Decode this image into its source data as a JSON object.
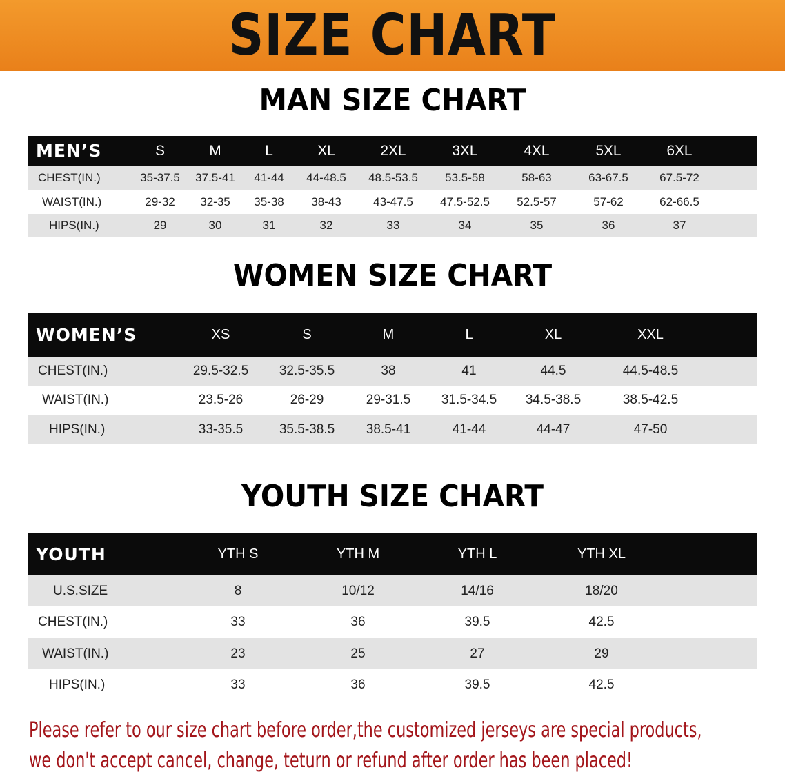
{
  "banner": {
    "title": "SIZE CHART",
    "color": "#ee8a22"
  },
  "men": {
    "title": "MAN SIZE CHART",
    "header_label": "MEN’S",
    "sizes": [
      "S",
      "M",
      "L",
      "XL",
      "2XL",
      "3XL",
      "4XL",
      "5XL",
      "6XL"
    ],
    "rows": [
      {
        "label": "CHEST(IN.)",
        "values": [
          "35-37.5",
          "37.5-41",
          "41-44",
          "44-48.5",
          "48.5-53.5",
          "53.5-58",
          "58-63",
          "63-67.5",
          "67.5-72"
        ]
      },
      {
        "label": "WAIST(IN.)",
        "values": [
          "29-32",
          "32-35",
          "35-38",
          "38-43",
          "43-47.5",
          "47.5-52.5",
          "52.5-57",
          "57-62",
          "62-66.5"
        ]
      },
      {
        "label": "HIPS(IN.)",
        "values": [
          "29",
          "30",
          "31",
          "32",
          "33",
          "34",
          "35",
          "36",
          "37"
        ]
      }
    ]
  },
  "women": {
    "title": "WOMEN SIZE CHART",
    "header_label": "WOMEN’S",
    "sizes": [
      "XS",
      "S",
      "M",
      "L",
      "XL",
      "XXL"
    ],
    "rows": [
      {
        "label": "CHEST(IN.)",
        "values": [
          "29.5-32.5",
          "32.5-35.5",
          "38",
          "41",
          "44.5",
          "44.5-48.5"
        ]
      },
      {
        "label": "WAIST(IN.)",
        "values": [
          "23.5-26",
          "26-29",
          "29-31.5",
          "31.5-34.5",
          "34.5-38.5",
          "38.5-42.5"
        ]
      },
      {
        "label": "HIPS(IN.)",
        "values": [
          "33-35.5",
          "35.5-38.5",
          "38.5-41",
          "41-44",
          "44-47",
          "47-50"
        ]
      }
    ]
  },
  "youth": {
    "title": "YOUTH SIZE CHART",
    "header_label": "YOUTH",
    "sizes": [
      "YTH S",
      "YTH M",
      "YTH L",
      "YTH XL"
    ],
    "rows": [
      {
        "label": "U.S.SIZE",
        "values": [
          "8",
          "10/12",
          "14/16",
          "18/20"
        ]
      },
      {
        "label": "CHEST(IN.)",
        "values": [
          "33",
          "36",
          "39.5",
          "42.5"
        ]
      },
      {
        "label": "WAIST(IN.)",
        "values": [
          "23",
          "25",
          "27",
          "29"
        ]
      },
      {
        "label": "HIPS(IN.)",
        "values": [
          "33",
          "36",
          "39.5",
          "42.5"
        ]
      }
    ]
  },
  "notice": {
    "line1": "Please refer to our size chart before order,the customized jerseys are special products,",
    "line2": "we don't accept cancel, change, teturn or refund after order has been placed!",
    "color": "#a3151a"
  }
}
